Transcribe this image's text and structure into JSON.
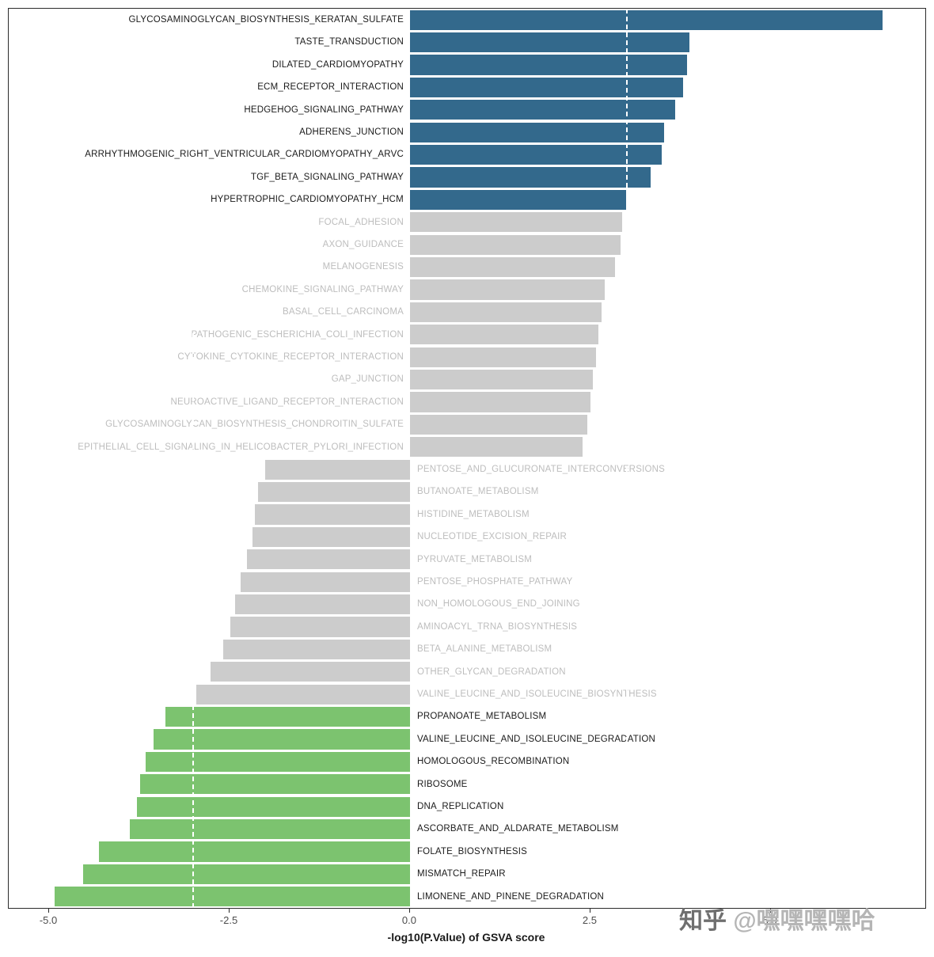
{
  "watermark": {
    "brand": "知乎",
    "handle": "@嘿嘿嘿嘿哈"
  },
  "chart_data": {
    "type": "bar",
    "orientation": "horizontal",
    "title": "",
    "xlabel": "-log10(P.Value) of GSVA score",
    "ylabel": "",
    "xlim": [
      -5.56,
      7.14
    ],
    "grid": false,
    "legend": "none",
    "x_ticks": [
      {
        "value": -5.0,
        "label": "-5.0"
      },
      {
        "value": -2.5,
        "label": "-2.5"
      },
      {
        "value": 0.0,
        "label": "0.0"
      },
      {
        "value": 2.5,
        "label": "2.5"
      },
      {
        "value": 5.0,
        "label": "5.0"
      }
    ],
    "dashed_lines": [
      3.0,
      -3.0
    ],
    "colors": {
      "up": "#33698c",
      "ns": "#cccccc",
      "down": "#7cc36f"
    },
    "label_colors": {
      "up": "#1a1a1a",
      "ns": "#bdbdbd",
      "down": "#1a1a1a"
    },
    "bars": [
      {
        "label": "GLYCOSAMINOGLYCAN_BIOSYNTHESIS_KERATAN_SULFATE",
        "value": 6.55,
        "group": "up"
      },
      {
        "label": "TASTE_TRANSDUCTION",
        "value": 3.87,
        "group": "up"
      },
      {
        "label": "DILATED_CARDIOMYOPATHY",
        "value": 3.84,
        "group": "up"
      },
      {
        "label": "ECM_RECEPTOR_INTERACTION",
        "value": 3.78,
        "group": "up"
      },
      {
        "label": "HEDGEHOG_SIGNALING_PATHWAY",
        "value": 3.67,
        "group": "up"
      },
      {
        "label": "ADHERENS_JUNCTION",
        "value": 3.52,
        "group": "up"
      },
      {
        "label": "ARRHYTHMOGENIC_RIGHT_VENTRICULAR_CARDIOMYOPATHY_ARVC",
        "value": 3.49,
        "group": "up"
      },
      {
        "label": "TGF_BETA_SIGNALING_PATHWAY",
        "value": 3.34,
        "group": "up"
      },
      {
        "label": "HYPERTROPHIC_CARDIOMYOPATHY_HCM",
        "value": 3.0,
        "group": "up"
      },
      {
        "label": "FOCAL_ADHESION",
        "value": 2.94,
        "group": "ns"
      },
      {
        "label": "AXON_GUIDANCE",
        "value": 2.92,
        "group": "ns"
      },
      {
        "label": "MELANOGENESIS",
        "value": 2.84,
        "group": "ns"
      },
      {
        "label": "CHEMOKINE_SIGNALING_PATHWAY",
        "value": 2.7,
        "group": "ns"
      },
      {
        "label": "BASAL_CELL_CARCINOMA",
        "value": 2.66,
        "group": "ns"
      },
      {
        "label": "PATHOGENIC_ESCHERICHIA_COLI_INFECTION",
        "value": 2.61,
        "group": "ns"
      },
      {
        "label": "CYTOKINE_CYTOKINE_RECEPTOR_INTERACTION",
        "value": 2.58,
        "group": "ns"
      },
      {
        "label": "GAP_JUNCTION",
        "value": 2.53,
        "group": "ns"
      },
      {
        "label": "NEUROACTIVE_LIGAND_RECEPTOR_INTERACTION",
        "value": 2.5,
        "group": "ns"
      },
      {
        "label": "GLYCOSAMINOGLYCAN_BIOSYNTHESIS_CHONDROITIN_SULFATE",
        "value": 2.46,
        "group": "ns"
      },
      {
        "label": "EPITHELIAL_CELL_SIGNALING_IN_HELICOBACTER_PYLORI_INFECTION",
        "value": 2.39,
        "group": "ns"
      },
      {
        "label": "PENTOSE_AND_GLUCURONATE_INTERCONVERSIONS",
        "value": -2.01,
        "group": "ns"
      },
      {
        "label": "BUTANOATE_METABOLISM",
        "value": -2.11,
        "group": "ns"
      },
      {
        "label": "HISTIDINE_METABOLISM",
        "value": -2.15,
        "group": "ns"
      },
      {
        "label": "NUCLEOTIDE_EXCISION_REPAIR",
        "value": -2.18,
        "group": "ns"
      },
      {
        "label": "PYRUVATE_METABOLISM",
        "value": -2.26,
        "group": "ns"
      },
      {
        "label": "PENTOSE_PHOSPHATE_PATHWAY",
        "value": -2.35,
        "group": "ns"
      },
      {
        "label": "NON_HOMOLOGOUS_END_JOINING",
        "value": -2.42,
        "group": "ns"
      },
      {
        "label": "AMINOACYL_TRNA_BIOSYNTHESIS",
        "value": -2.49,
        "group": "ns"
      },
      {
        "label": "BETA_ALANINE_METABOLISM",
        "value": -2.59,
        "group": "ns"
      },
      {
        "label": "OTHER_GLYCAN_DEGRADATION",
        "value": -2.76,
        "group": "ns"
      },
      {
        "label": "VALINE_LEUCINE_AND_ISOLEUCINE_BIOSYNTHESIS",
        "value": -2.96,
        "group": "ns"
      },
      {
        "label": "PROPANOATE_METABOLISM",
        "value": -3.39,
        "group": "down"
      },
      {
        "label": "VALINE_LEUCINE_AND_ISOLEUCINE_DEGRADATION",
        "value": -3.55,
        "group": "down"
      },
      {
        "label": "HOMOLOGOUS_RECOMBINATION",
        "value": -3.66,
        "group": "down"
      },
      {
        "label": "RIBOSOME",
        "value": -3.74,
        "group": "down"
      },
      {
        "label": "DNA_REPLICATION",
        "value": -3.78,
        "group": "down"
      },
      {
        "label": "ASCORBATE_AND_ALDARATE_METABOLISM",
        "value": -3.88,
        "group": "down"
      },
      {
        "label": "FOLATE_BIOSYNTHESIS",
        "value": -4.31,
        "group": "down"
      },
      {
        "label": "MISMATCH_REPAIR",
        "value": -4.53,
        "group": "down"
      },
      {
        "label": "LIMONENE_AND_PINENE_DEGRADATION",
        "value": -4.92,
        "group": "down"
      }
    ]
  }
}
